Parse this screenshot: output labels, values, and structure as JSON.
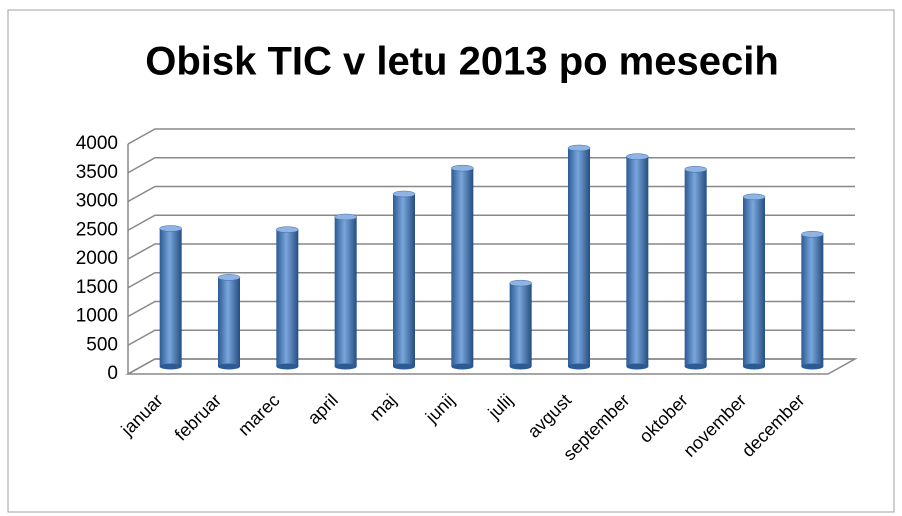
{
  "chart_data": {
    "type": "bar",
    "title": "Obisk TIC v letu 2013 po mesecih",
    "categories": [
      "januar",
      "februar",
      "marec",
      "april",
      "maj",
      "junij",
      "julij",
      "avgust",
      "september",
      "oktober",
      "november",
      "december"
    ],
    "values": [
      2400,
      1550,
      2380,
      2600,
      3000,
      3450,
      1450,
      3800,
      3650,
      3430,
      2950,
      2300
    ],
    "color": "#4f81bd",
    "ylim": [
      0,
      4000
    ],
    "yticks": [
      0,
      500,
      1000,
      1500,
      2000,
      2500,
      3000,
      3500,
      4000
    ],
    "grid": true
  }
}
